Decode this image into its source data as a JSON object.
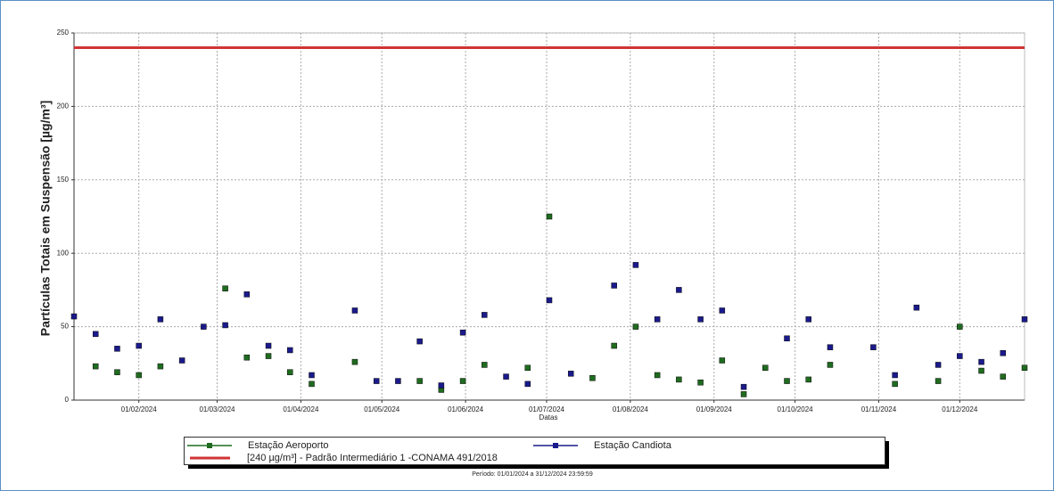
{
  "chart_data": {
    "type": "scatter",
    "ylabel": "Partículas Totais em Suspensão [µg/m³]",
    "xlabel": "Datas",
    "footer": "Período: 01/01/2024 a 31/12/2024 23:59:59",
    "ylim": [
      0,
      250
    ],
    "yticks": [
      0,
      50,
      100,
      150,
      200,
      250
    ],
    "xlim": [
      "2024-01-08",
      "2024-12-25"
    ],
    "xticks": [
      {
        "value": "2024-02-01",
        "label": "01/02/2024"
      },
      {
        "value": "2024-03-01",
        "label": "01/03/2024"
      },
      {
        "value": "2024-04-01",
        "label": "01/04/2024"
      },
      {
        "value": "2024-05-01",
        "label": "01/05/2024"
      },
      {
        "value": "2024-06-01",
        "label": "01/06/2024"
      },
      {
        "value": "2024-07-01",
        "label": "01/07/2024"
      },
      {
        "value": "2024-08-01",
        "label": "01/08/2024"
      },
      {
        "value": "2024-09-01",
        "label": "01/09/2024"
      },
      {
        "value": "2024-10-01",
        "label": "01/10/2024"
      },
      {
        "value": "2024-11-01",
        "label": "01/11/2024"
      },
      {
        "value": "2024-12-01",
        "label": "01/12/2024"
      }
    ],
    "grid": true,
    "x": [
      "2024-01-08",
      "2024-01-16",
      "2024-01-24",
      "2024-02-01",
      "2024-02-09",
      "2024-02-17",
      "2024-02-25",
      "2024-03-04",
      "2024-03-12",
      "2024-03-20",
      "2024-03-28",
      "2024-04-05",
      "2024-04-13",
      "2024-04-21",
      "2024-04-29",
      "2024-05-07",
      "2024-05-15",
      "2024-05-23",
      "2024-05-31",
      "2024-06-08",
      "2024-06-16",
      "2024-06-24",
      "2024-07-02",
      "2024-07-10",
      "2024-07-18",
      "2024-07-26",
      "2024-08-03",
      "2024-08-11",
      "2024-08-19",
      "2024-08-27",
      "2024-09-04",
      "2024-09-12",
      "2024-09-20",
      "2024-09-28",
      "2024-10-06",
      "2024-10-14",
      "2024-10-22",
      "2024-10-30",
      "2024-11-07",
      "2024-11-15",
      "2024-11-23",
      "2024-12-01",
      "2024-12-09",
      "2024-12-17",
      "2024-12-25"
    ],
    "series": [
      {
        "name": "Estação Aeroporto",
        "color": "#1f6b1f",
        "values": [
          null,
          23,
          19,
          17,
          23,
          null,
          null,
          76,
          29,
          30,
          19,
          11,
          null,
          26,
          null,
          null,
          13,
          7,
          13,
          24,
          null,
          22,
          125,
          null,
          15,
          37,
          50,
          17,
          14,
          12,
          27,
          4,
          22,
          13,
          14,
          24,
          null,
          null,
          11,
          null,
          13,
          50,
          20,
          16,
          22
        ]
      },
      {
        "name": "Estação Candiota",
        "color": "#1a1a8c",
        "values": [
          57,
          45,
          35,
          37,
          55,
          27,
          50,
          51,
          72,
          37,
          34,
          17,
          null,
          61,
          13,
          13,
          40,
          10,
          46,
          58,
          16,
          11,
          68,
          18,
          null,
          78,
          92,
          55,
          75,
          55,
          61,
          9,
          null,
          42,
          55,
          36,
          null,
          36,
          17,
          63,
          24,
          30,
          26,
          32,
          55
        ]
      }
    ],
    "reference_line": {
      "name": "[240 µg/m³] - Padrão Intermediário 1 -CONAMA 491/2018",
      "value": 240,
      "color": "#d03434"
    }
  }
}
